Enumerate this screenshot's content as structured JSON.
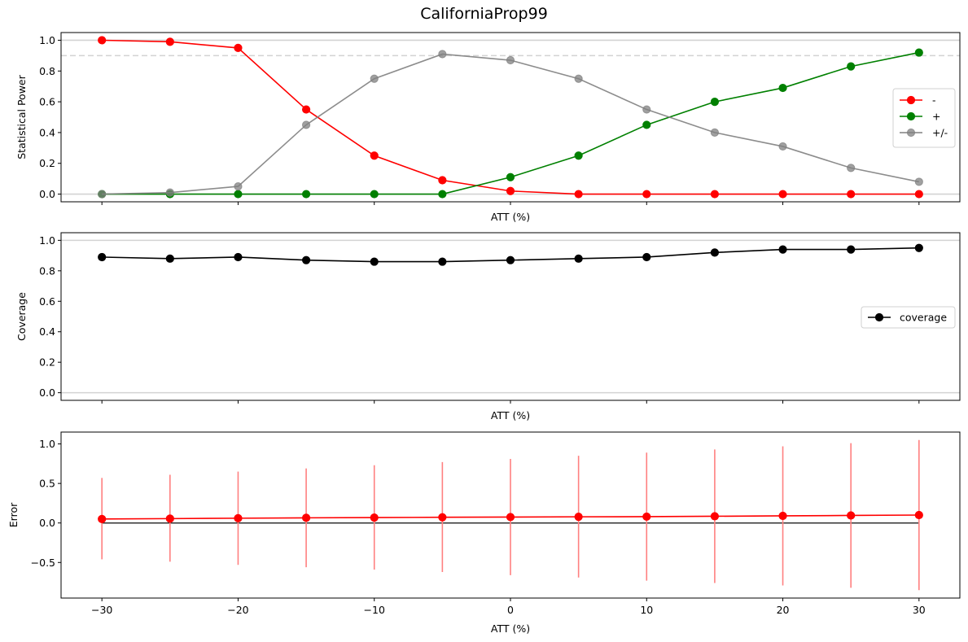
{
  "figure": {
    "title": "CaliforniaProp99"
  },
  "colors": {
    "neg": "#ff0000",
    "pos": "#008000",
    "both": "#808080",
    "coverage": "#000000",
    "error": "#ff0000",
    "errorbar": "#ff8080",
    "refline": "#d3d3d3"
  },
  "chart_data": [
    {
      "type": "line",
      "title": "",
      "xlabel": "ATT (%)",
      "ylabel": "Statistical Power",
      "x": [
        -30,
        -25,
        -20,
        -15,
        -10,
        -5,
        0,
        5,
        10,
        15,
        20,
        25,
        30
      ],
      "xlim": [
        -33,
        33
      ],
      "ylim": [
        -0.05,
        1.05
      ],
      "yticks": [
        0.0,
        0.2,
        0.4,
        0.6,
        0.8,
        1.0
      ],
      "ytick_labels": [
        "0.0",
        "0.2",
        "0.4",
        "0.6",
        "0.8",
        "1.0"
      ],
      "show_xtick_labels": false,
      "reference_lines": [
        {
          "y": 0.0,
          "style": "solid"
        },
        {
          "y": 1.0,
          "style": "solid"
        },
        {
          "y": 0.9,
          "style": "dashed"
        }
      ],
      "legend_position": "right",
      "series": [
        {
          "name": "-",
          "color": "#ff0000",
          "values": [
            1.0,
            0.99,
            0.95,
            0.55,
            0.25,
            0.09,
            0.02,
            0.0,
            0.0,
            0.0,
            0.0,
            0.0,
            0.0
          ]
        },
        {
          "name": "+",
          "color": "#008000",
          "values": [
            0.0,
            0.0,
            0.0,
            0.0,
            0.0,
            0.0,
            0.11,
            0.25,
            0.45,
            0.6,
            0.69,
            0.83,
            0.92
          ]
        },
        {
          "name": "+/-",
          "color": "#808080",
          "values": [
            0.0,
            0.01,
            0.05,
            0.45,
            0.75,
            0.91,
            0.87,
            0.75,
            0.55,
            0.4,
            0.31,
            0.17,
            0.08
          ]
        }
      ]
    },
    {
      "type": "line",
      "title": "",
      "xlabel": "ATT (%)",
      "ylabel": "Coverage",
      "x": [
        -30,
        -25,
        -20,
        -15,
        -10,
        -5,
        0,
        5,
        10,
        15,
        20,
        25,
        30
      ],
      "xlim": [
        -33,
        33
      ],
      "ylim": [
        -0.05,
        1.05
      ],
      "yticks": [
        0.0,
        0.2,
        0.4,
        0.6,
        0.8,
        1.0
      ],
      "ytick_labels": [
        "0.0",
        "0.2",
        "0.4",
        "0.6",
        "0.8",
        "1.0"
      ],
      "show_xtick_labels": false,
      "reference_lines": [
        {
          "y": 0.0,
          "style": "solid"
        },
        {
          "y": 1.0,
          "style": "solid"
        }
      ],
      "legend_position": "right",
      "series": [
        {
          "name": "coverage",
          "color": "#000000",
          "values": [
            0.89,
            0.88,
            0.89,
            0.87,
            0.86,
            0.86,
            0.87,
            0.88,
            0.89,
            0.92,
            0.94,
            0.94,
            0.95
          ]
        }
      ]
    },
    {
      "type": "line",
      "title": "",
      "xlabel": "ATT (%)",
      "ylabel": "Error",
      "x": [
        -30,
        -25,
        -20,
        -15,
        -10,
        -5,
        0,
        5,
        10,
        15,
        20,
        25,
        30
      ],
      "xlim": [
        -33,
        33
      ],
      "ylim": [
        -0.95,
        1.15
      ],
      "yticks": [
        -0.5,
        0.0,
        0.5,
        1.0
      ],
      "ytick_labels": [
        "−0.5",
        "0.0",
        "0.5",
        "1.0"
      ],
      "xticks": [
        -30,
        -20,
        -10,
        0,
        10,
        20,
        30
      ],
      "xtick_labels": [
        "−30",
        "−20",
        "−10",
        "0",
        "10",
        "20",
        "30"
      ],
      "show_xtick_labels": true,
      "zero_line": {
        "y": 0.0,
        "x_range": [
          -30,
          30
        ]
      },
      "series": [
        {
          "color": "#ff0000",
          "values": [
            0.05,
            0.055,
            0.06,
            0.065,
            0.068,
            0.072,
            0.075,
            0.078,
            0.08,
            0.085,
            0.09,
            0.095,
            0.1
          ],
          "err_low": [
            -0.46,
            -0.49,
            -0.53,
            -0.56,
            -0.59,
            -0.62,
            -0.66,
            -0.69,
            -0.73,
            -0.76,
            -0.79,
            -0.82,
            -0.85
          ],
          "err_high": [
            0.57,
            0.61,
            0.65,
            0.69,
            0.73,
            0.77,
            0.81,
            0.85,
            0.89,
            0.93,
            0.97,
            1.01,
            1.05
          ]
        }
      ]
    }
  ]
}
